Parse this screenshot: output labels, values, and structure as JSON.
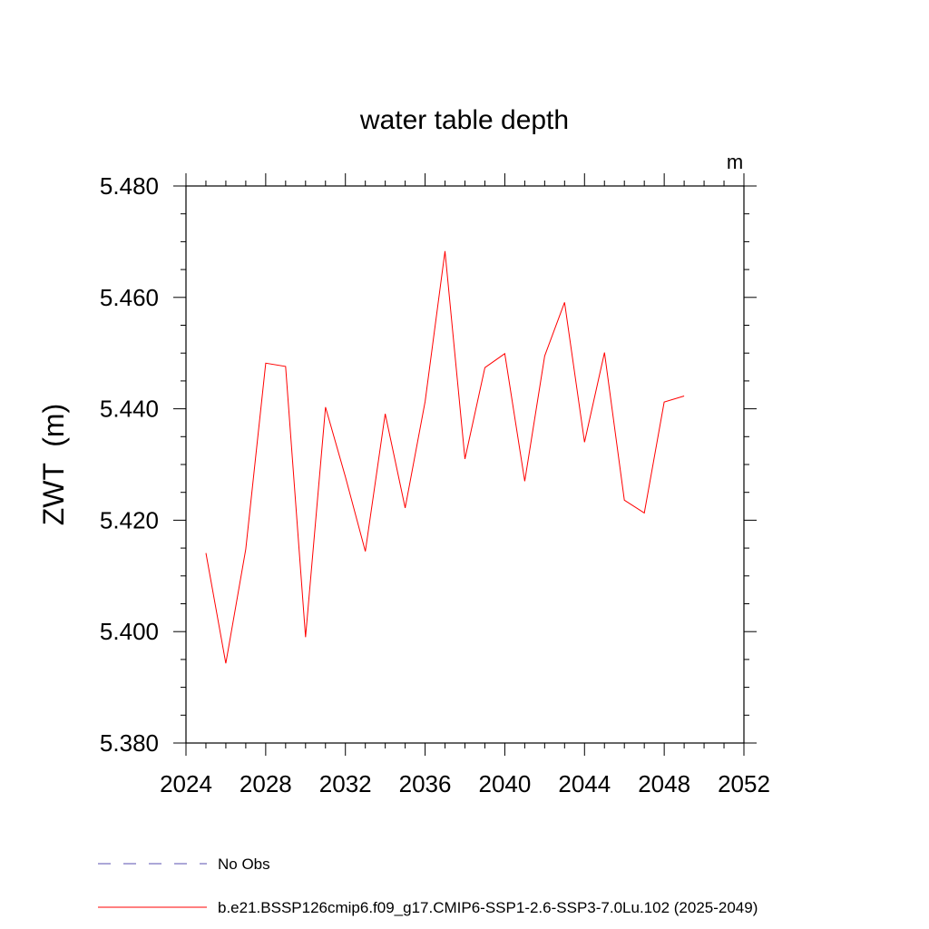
{
  "chart_data": {
    "type": "line",
    "title": "water table depth",
    "units": "m",
    "ylabel": "ZWT  (m)",
    "xlabel": "",
    "xlim": [
      2024,
      2052
    ],
    "ylim": [
      5.38,
      5.48
    ],
    "x_ticks": [
      2024,
      2028,
      2032,
      2036,
      2040,
      2044,
      2048,
      2052
    ],
    "y_ticks": [
      5.38,
      5.4,
      5.42,
      5.44,
      5.46,
      5.48
    ],
    "x_tick_labels": [
      "2024",
      "2028",
      "2032",
      "2036",
      "2040",
      "2044",
      "2048",
      "2052"
    ],
    "y_tick_labels": [
      "5.380",
      "5.400",
      "5.420",
      "5.440",
      "5.460",
      "5.480"
    ],
    "grid": false,
    "legend_position": "bottom",
    "series": [
      {
        "name": "b.e21.BSSP126cmip6.f09_g17.CMIP6-SSP1-2.6-SSP3-7.0Lu.102 (2025-2049)",
        "color": "#ff0000",
        "x": [
          2025,
          2026,
          2027,
          2028,
          2029,
          2030,
          2031,
          2032,
          2033,
          2034,
          2035,
          2036,
          2037,
          2038,
          2039,
          2040,
          2041,
          2042,
          2043,
          2044,
          2045,
          2046,
          2047,
          2048,
          2049
        ],
        "values": [
          5.4141,
          5.3943,
          5.4148,
          5.4482,
          5.4476,
          5.399,
          5.4403,
          5.4278,
          5.4144,
          5.4391,
          5.4222,
          5.4413,
          5.4683,
          5.431,
          5.4474,
          5.4499,
          5.427,
          5.4495,
          5.4591,
          5.434,
          5.4501,
          5.4236,
          5.4213,
          5.4412,
          5.4423
        ]
      }
    ],
    "legend": [
      {
        "label": "No Obs",
        "color": "#5a4fb0",
        "style": "dashed"
      },
      {
        "label": "b.e21.BSSP126cmip6.f09_g17.CMIP6-SSP1-2.6-SSP3-7.0Lu.102 (2025-2049)",
        "color": "#ff0000",
        "style": "solid"
      }
    ]
  }
}
